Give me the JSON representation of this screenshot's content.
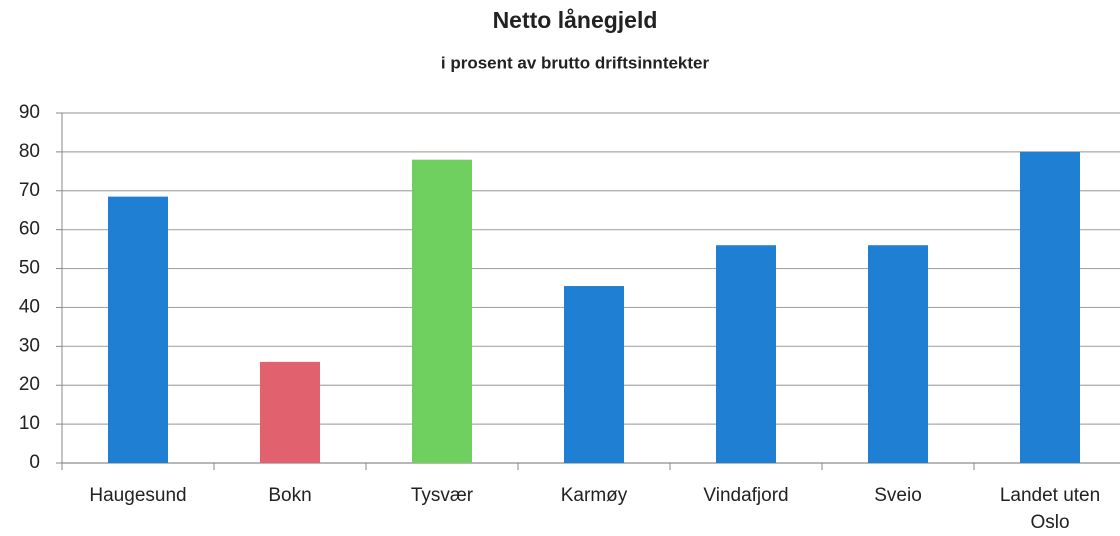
{
  "chart_data": {
    "type": "bar",
    "title": "Netto lånegjeld",
    "subtitle": "i prosent av brutto driftsinntekter",
    "categories": [
      "Haugesund",
      "Bokn",
      "Tysvær",
      "Karmøy",
      "Vindafjord",
      "Sveio",
      "Landet uten Oslo"
    ],
    "values": [
      68.5,
      26,
      78,
      45.5,
      56,
      56,
      80
    ],
    "colors": [
      "#1f7fd2",
      "#e2616f",
      "#6fcf5f",
      "#1f7fd2",
      "#1f7fd2",
      "#1f7fd2",
      "#1f7fd2"
    ],
    "ylim": [
      0,
      90
    ],
    "yticks": [
      0,
      10,
      20,
      30,
      40,
      50,
      60,
      70,
      80,
      90
    ],
    "grid": true
  }
}
